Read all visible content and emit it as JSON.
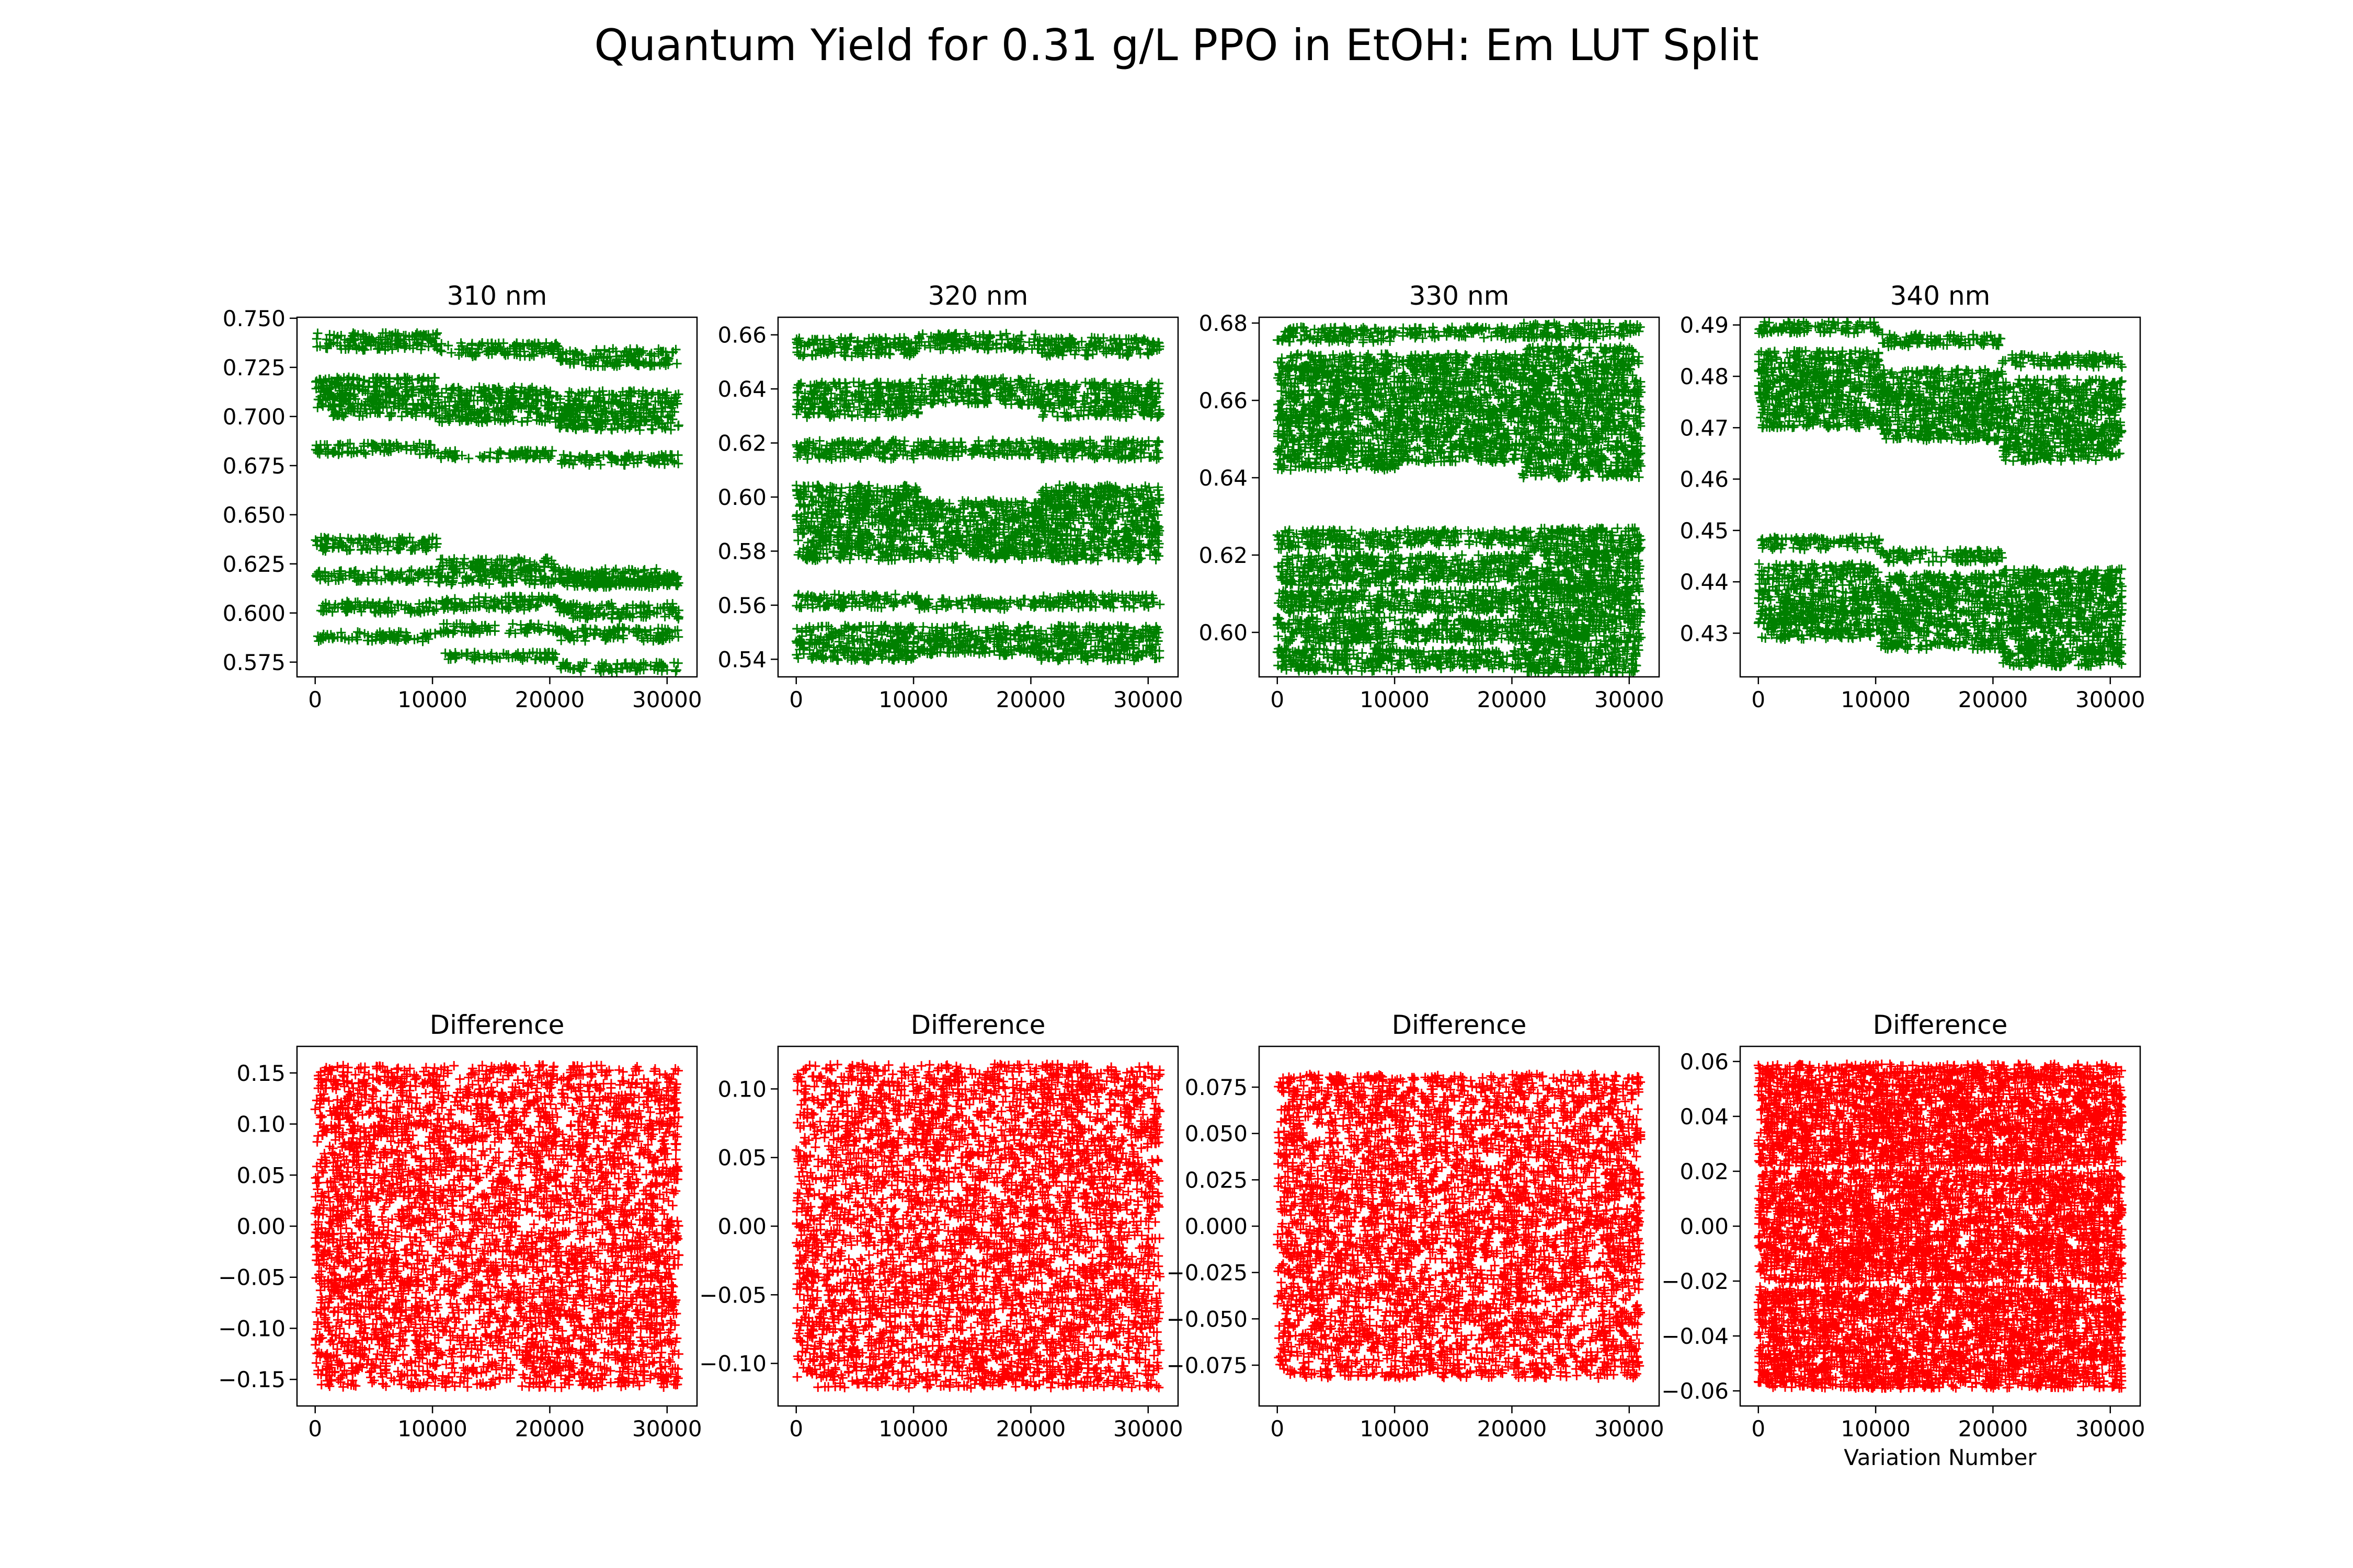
{
  "figure": {
    "suptitle": "Quantum Yield for 0.31 g/L PPO in EtOH: Em LUT Split"
  },
  "chart_data": [
    {
      "type": "scatter",
      "title": "310 nm",
      "xlabel": "",
      "ylabel": "",
      "color": "#008000",
      "marker": "+",
      "xlim": [
        -1550,
        32550
      ],
      "ylim": [
        0.5675,
        0.7505
      ],
      "xticks": [
        0,
        10000,
        20000,
        30000
      ],
      "xtick_labels": [
        "0",
        "10000",
        "20000",
        "30000"
      ],
      "yticks": [
        0.575,
        0.6,
        0.625,
        0.65,
        0.675,
        0.7,
        0.725,
        0.75
      ],
      "ytick_labels": [
        "0.575",
        "0.600",
        "0.625",
        "0.650",
        "0.675",
        "0.700",
        "0.725",
        "0.750"
      ],
      "bands": [
        [
          [
            0,
            10400,
            0.738,
            0.0045
          ],
          [
            10400,
            20800,
            0.734,
            0.0035
          ],
          [
            20800,
            31000,
            0.73,
            0.0045
          ]
        ],
        [
          [
            0,
            10400,
            0.71,
            0.01
          ],
          [
            10400,
            20800,
            0.706,
            0.009
          ],
          [
            20800,
            31000,
            0.703,
            0.01
          ]
        ],
        [
          [
            0,
            10400,
            0.6835,
            0.0028
          ],
          [
            10400,
            20800,
            0.6805,
            0.0022
          ],
          [
            20800,
            31000,
            0.678,
            0.0028
          ]
        ],
        [
          [
            0,
            10400,
            0.635,
            0.0035
          ],
          [
            10400,
            20800,
            0.624,
            0.004
          ],
          [
            20800,
            31000,
            0.618,
            0.0045
          ]
        ],
        [
          [
            0,
            10400,
            0.619,
            0.003
          ],
          [
            10400,
            20800,
            0.617,
            0.0025
          ],
          [
            20800,
            31000,
            0.616,
            0.003
          ]
        ],
        [
          [
            0,
            10400,
            0.603,
            0.003
          ],
          [
            10400,
            20800,
            0.605,
            0.0035
          ],
          [
            20800,
            31000,
            0.601,
            0.004
          ]
        ],
        [
          [
            0,
            10400,
            0.588,
            0.0025
          ],
          [
            10400,
            20800,
            0.592,
            0.0025
          ],
          [
            20800,
            31000,
            0.589,
            0.0035
          ]
        ],
        [
          [
            10400,
            20800,
            0.578,
            0.002
          ],
          [
            20800,
            31000,
            0.5725,
            0.0025
          ]
        ]
      ]
    },
    {
      "type": "scatter",
      "title": "320 nm",
      "xlabel": "",
      "ylabel": "",
      "color": "#008000",
      "marker": "+",
      "xlim": [
        -1550,
        32550
      ],
      "ylim": [
        0.5335,
        0.6665
      ],
      "xticks": [
        0,
        10000,
        20000,
        30000
      ],
      "xtick_labels": [
        "0",
        "10000",
        "20000",
        "30000"
      ],
      "yticks": [
        0.54,
        0.56,
        0.58,
        0.6,
        0.62,
        0.64,
        0.66
      ],
      "ytick_labels": [
        "0.54",
        "0.56",
        "0.58",
        "0.60",
        "0.62",
        "0.64",
        "0.66"
      ],
      "bands": [
        [
          [
            0,
            10400,
            0.6555,
            0.0035
          ],
          [
            10400,
            20800,
            0.6575,
            0.003
          ],
          [
            20800,
            31000,
            0.6555,
            0.0035
          ]
        ],
        [
          [
            0,
            10400,
            0.636,
            0.0065
          ],
          [
            10400,
            20800,
            0.639,
            0.005
          ],
          [
            20800,
            31000,
            0.636,
            0.0065
          ]
        ],
        [
          [
            0,
            10400,
            0.6175,
            0.0035
          ],
          [
            10400,
            20800,
            0.618,
            0.003
          ],
          [
            20800,
            31000,
            0.6175,
            0.0035
          ]
        ],
        [
          [
            0,
            10400,
            0.5905,
            0.014
          ],
          [
            10400,
            20800,
            0.588,
            0.011
          ],
          [
            20800,
            31000,
            0.5905,
            0.014
          ]
        ],
        [
          [
            0,
            10400,
            0.5615,
            0.0025
          ],
          [
            10400,
            20800,
            0.5605,
            0.002
          ],
          [
            20800,
            31000,
            0.5615,
            0.0025
          ]
        ],
        [
          [
            0,
            10400,
            0.546,
            0.0065
          ],
          [
            10400,
            20800,
            0.547,
            0.0055
          ],
          [
            20800,
            31000,
            0.546,
            0.0065
          ]
        ]
      ]
    },
    {
      "type": "scatter",
      "title": "330 nm",
      "xlabel": "",
      "ylabel": "",
      "color": "#008000",
      "marker": "+",
      "xlim": [
        -1550,
        32550
      ],
      "ylim": [
        0.5885,
        0.6815
      ],
      "xticks": [
        0,
        10000,
        20000,
        30000
      ],
      "xtick_labels": [
        "0",
        "10000",
        "20000",
        "30000"
      ],
      "yticks": [
        0.6,
        0.62,
        0.64,
        0.66,
        0.68
      ],
      "ytick_labels": [
        "0.60",
        "0.62",
        "0.64",
        "0.66",
        "0.68"
      ],
      "bands": [
        [
          [
            0,
            10400,
            0.677,
            0.002
          ],
          [
            10400,
            20800,
            0.6775,
            0.0015
          ],
          [
            20800,
            31000,
            0.678,
            0.002
          ]
        ],
        [
          [
            0,
            10400,
            0.657,
            0.015
          ],
          [
            10400,
            20800,
            0.658,
            0.014
          ],
          [
            20800,
            31000,
            0.657,
            0.017
          ]
        ],
        [
          [
            0,
            10400,
            0.624,
            0.0025
          ],
          [
            10400,
            20800,
            0.6245,
            0.002
          ],
          [
            20800,
            31000,
            0.624,
            0.003
          ]
        ],
        [
          [
            0,
            10400,
            0.616,
            0.004
          ],
          [
            10400,
            20800,
            0.6165,
            0.0035
          ],
          [
            20800,
            31000,
            0.616,
            0.005
          ]
        ],
        [
          [
            0,
            10400,
            0.608,
            0.003
          ],
          [
            10400,
            20800,
            0.608,
            0.003
          ],
          [
            20800,
            31000,
            0.608,
            0.004
          ]
        ],
        [
          [
            0,
            10400,
            0.6005,
            0.0035
          ],
          [
            10400,
            20800,
            0.6005,
            0.003
          ],
          [
            20800,
            31000,
            0.6005,
            0.004
          ]
        ],
        [
          [
            0,
            10400,
            0.593,
            0.003
          ],
          [
            10400,
            20800,
            0.593,
            0.0025
          ],
          [
            20800,
            31000,
            0.593,
            0.0035
          ]
        ]
      ]
    },
    {
      "type": "scatter",
      "title": "340 nm",
      "xlabel": "",
      "ylabel": "",
      "color": "#008000",
      "marker": "+",
      "xlim": [
        -1550,
        32550
      ],
      "ylim": [
        0.4215,
        0.4915
      ],
      "xticks": [
        0,
        10000,
        20000,
        30000
      ],
      "xtick_labels": [
        "0",
        "10000",
        "20000",
        "30000"
      ],
      "yticks": [
        0.43,
        0.44,
        0.45,
        0.46,
        0.47,
        0.48,
        0.49
      ],
      "ytick_labels": [
        "0.43",
        "0.44",
        "0.45",
        "0.46",
        "0.47",
        "0.48",
        "0.49"
      ],
      "bands": [
        [
          [
            0,
            10400,
            0.4895,
            0.0012
          ],
          [
            10400,
            20800,
            0.487,
            0.0012
          ],
          [
            20800,
            31000,
            0.483,
            0.0012
          ]
        ],
        [
          [
            0,
            10400,
            0.4775,
            0.0075
          ],
          [
            10400,
            20800,
            0.4745,
            0.007
          ],
          [
            20800,
            31000,
            0.4715,
            0.008
          ]
        ],
        [
          [
            0,
            10400,
            0.4475,
            0.0012
          ],
          [
            10400,
            20800,
            0.445,
            0.0012
          ],
          [
            20800,
            31000,
            0.441,
            0.0015
          ]
        ],
        [
          [
            0,
            10400,
            0.4375,
            0.006
          ],
          [
            10400,
            20800,
            0.4355,
            0.006
          ],
          [
            20800,
            31000,
            0.433,
            0.007
          ]
        ],
        [
          [
            0,
            10400,
            0.43,
            0.0012
          ],
          [
            10400,
            20800,
            0.428,
            0.0012
          ],
          [
            20800,
            31000,
            0.425,
            0.0015
          ]
        ]
      ]
    },
    {
      "type": "scatter",
      "title": "Difference",
      "xlabel": "",
      "ylabel": "",
      "color": "#ff0000",
      "marker": "+",
      "xlim": [
        -1550,
        32550
      ],
      "ylim": [
        -0.176,
        0.176
      ],
      "xticks": [
        0,
        10000,
        20000,
        30000
      ],
      "xtick_labels": [
        "0",
        "10000",
        "20000",
        "30000"
      ],
      "yticks": [
        -0.15,
        -0.1,
        -0.05,
        0,
        0.05,
        0.1,
        0.15
      ],
      "ytick_labels": [
        "−0.15",
        "−0.10",
        "−0.05",
        "0.00",
        "0.05",
        "0.10",
        "0.15"
      ],
      "bands": [
        [
          [
            0,
            31000,
            0.0,
            0.158
          ]
        ]
      ]
    },
    {
      "type": "scatter",
      "title": "Difference",
      "xlabel": "",
      "ylabel": "",
      "color": "#ff0000",
      "marker": "+",
      "xlim": [
        -1550,
        32550
      ],
      "ylim": [
        -0.131,
        0.131
      ],
      "xticks": [
        0,
        10000,
        20000,
        30000
      ],
      "xtick_labels": [
        "0",
        "10000",
        "20000",
        "30000"
      ],
      "yticks": [
        -0.1,
        -0.05,
        0,
        0.05,
        0.1
      ],
      "ytick_labels": [
        "−0.10",
        "−0.05",
        "0.00",
        "0.05",
        "0.10"
      ],
      "bands": [
        [
          [
            0,
            31000,
            0.0,
            0.118
          ]
        ]
      ]
    },
    {
      "type": "scatter",
      "title": "Difference",
      "xlabel": "",
      "ylabel": "",
      "color": "#ff0000",
      "marker": "+",
      "xlim": [
        -1550,
        32550
      ],
      "ylim": [
        -0.097,
        0.097
      ],
      "xticks": [
        0,
        10000,
        20000,
        30000
      ],
      "xtick_labels": [
        "0",
        "10000",
        "20000",
        "30000"
      ],
      "yticks": [
        -0.075,
        -0.05,
        -0.025,
        0,
        0.025,
        0.05,
        0.075
      ],
      "ytick_labels": [
        "−0.075",
        "−0.050",
        "−0.025",
        "0.000",
        "0.025",
        "0.050",
        "0.075"
      ],
      "bands": [
        [
          [
            0,
            31000,
            0.0,
            0.082
          ]
        ]
      ]
    },
    {
      "type": "scatter",
      "title": "Difference",
      "xlabel": "Variation Number",
      "ylabel": "",
      "color": "#ff0000",
      "marker": "+",
      "xlim": [
        -1550,
        32550
      ],
      "ylim": [
        -0.0655,
        0.0655
      ],
      "xticks": [
        0,
        10000,
        20000,
        30000
      ],
      "xtick_labels": [
        "0",
        "10000",
        "20000",
        "30000"
      ],
      "yticks": [
        -0.06,
        -0.04,
        -0.02,
        0,
        0.02,
        0.04,
        0.06
      ],
      "ytick_labels": [
        "−0.06",
        "−0.04",
        "−0.02",
        "0.00",
        "0.02",
        "0.04",
        "0.06"
      ],
      "bands": [
        [
          [
            0,
            31000,
            0.0405,
            0.0185
          ]
        ],
        [
          [
            0,
            31000,
            0.0,
            0.0205
          ]
        ],
        [
          [
            0,
            31000,
            -0.0405,
            0.0185
          ]
        ]
      ]
    }
  ]
}
